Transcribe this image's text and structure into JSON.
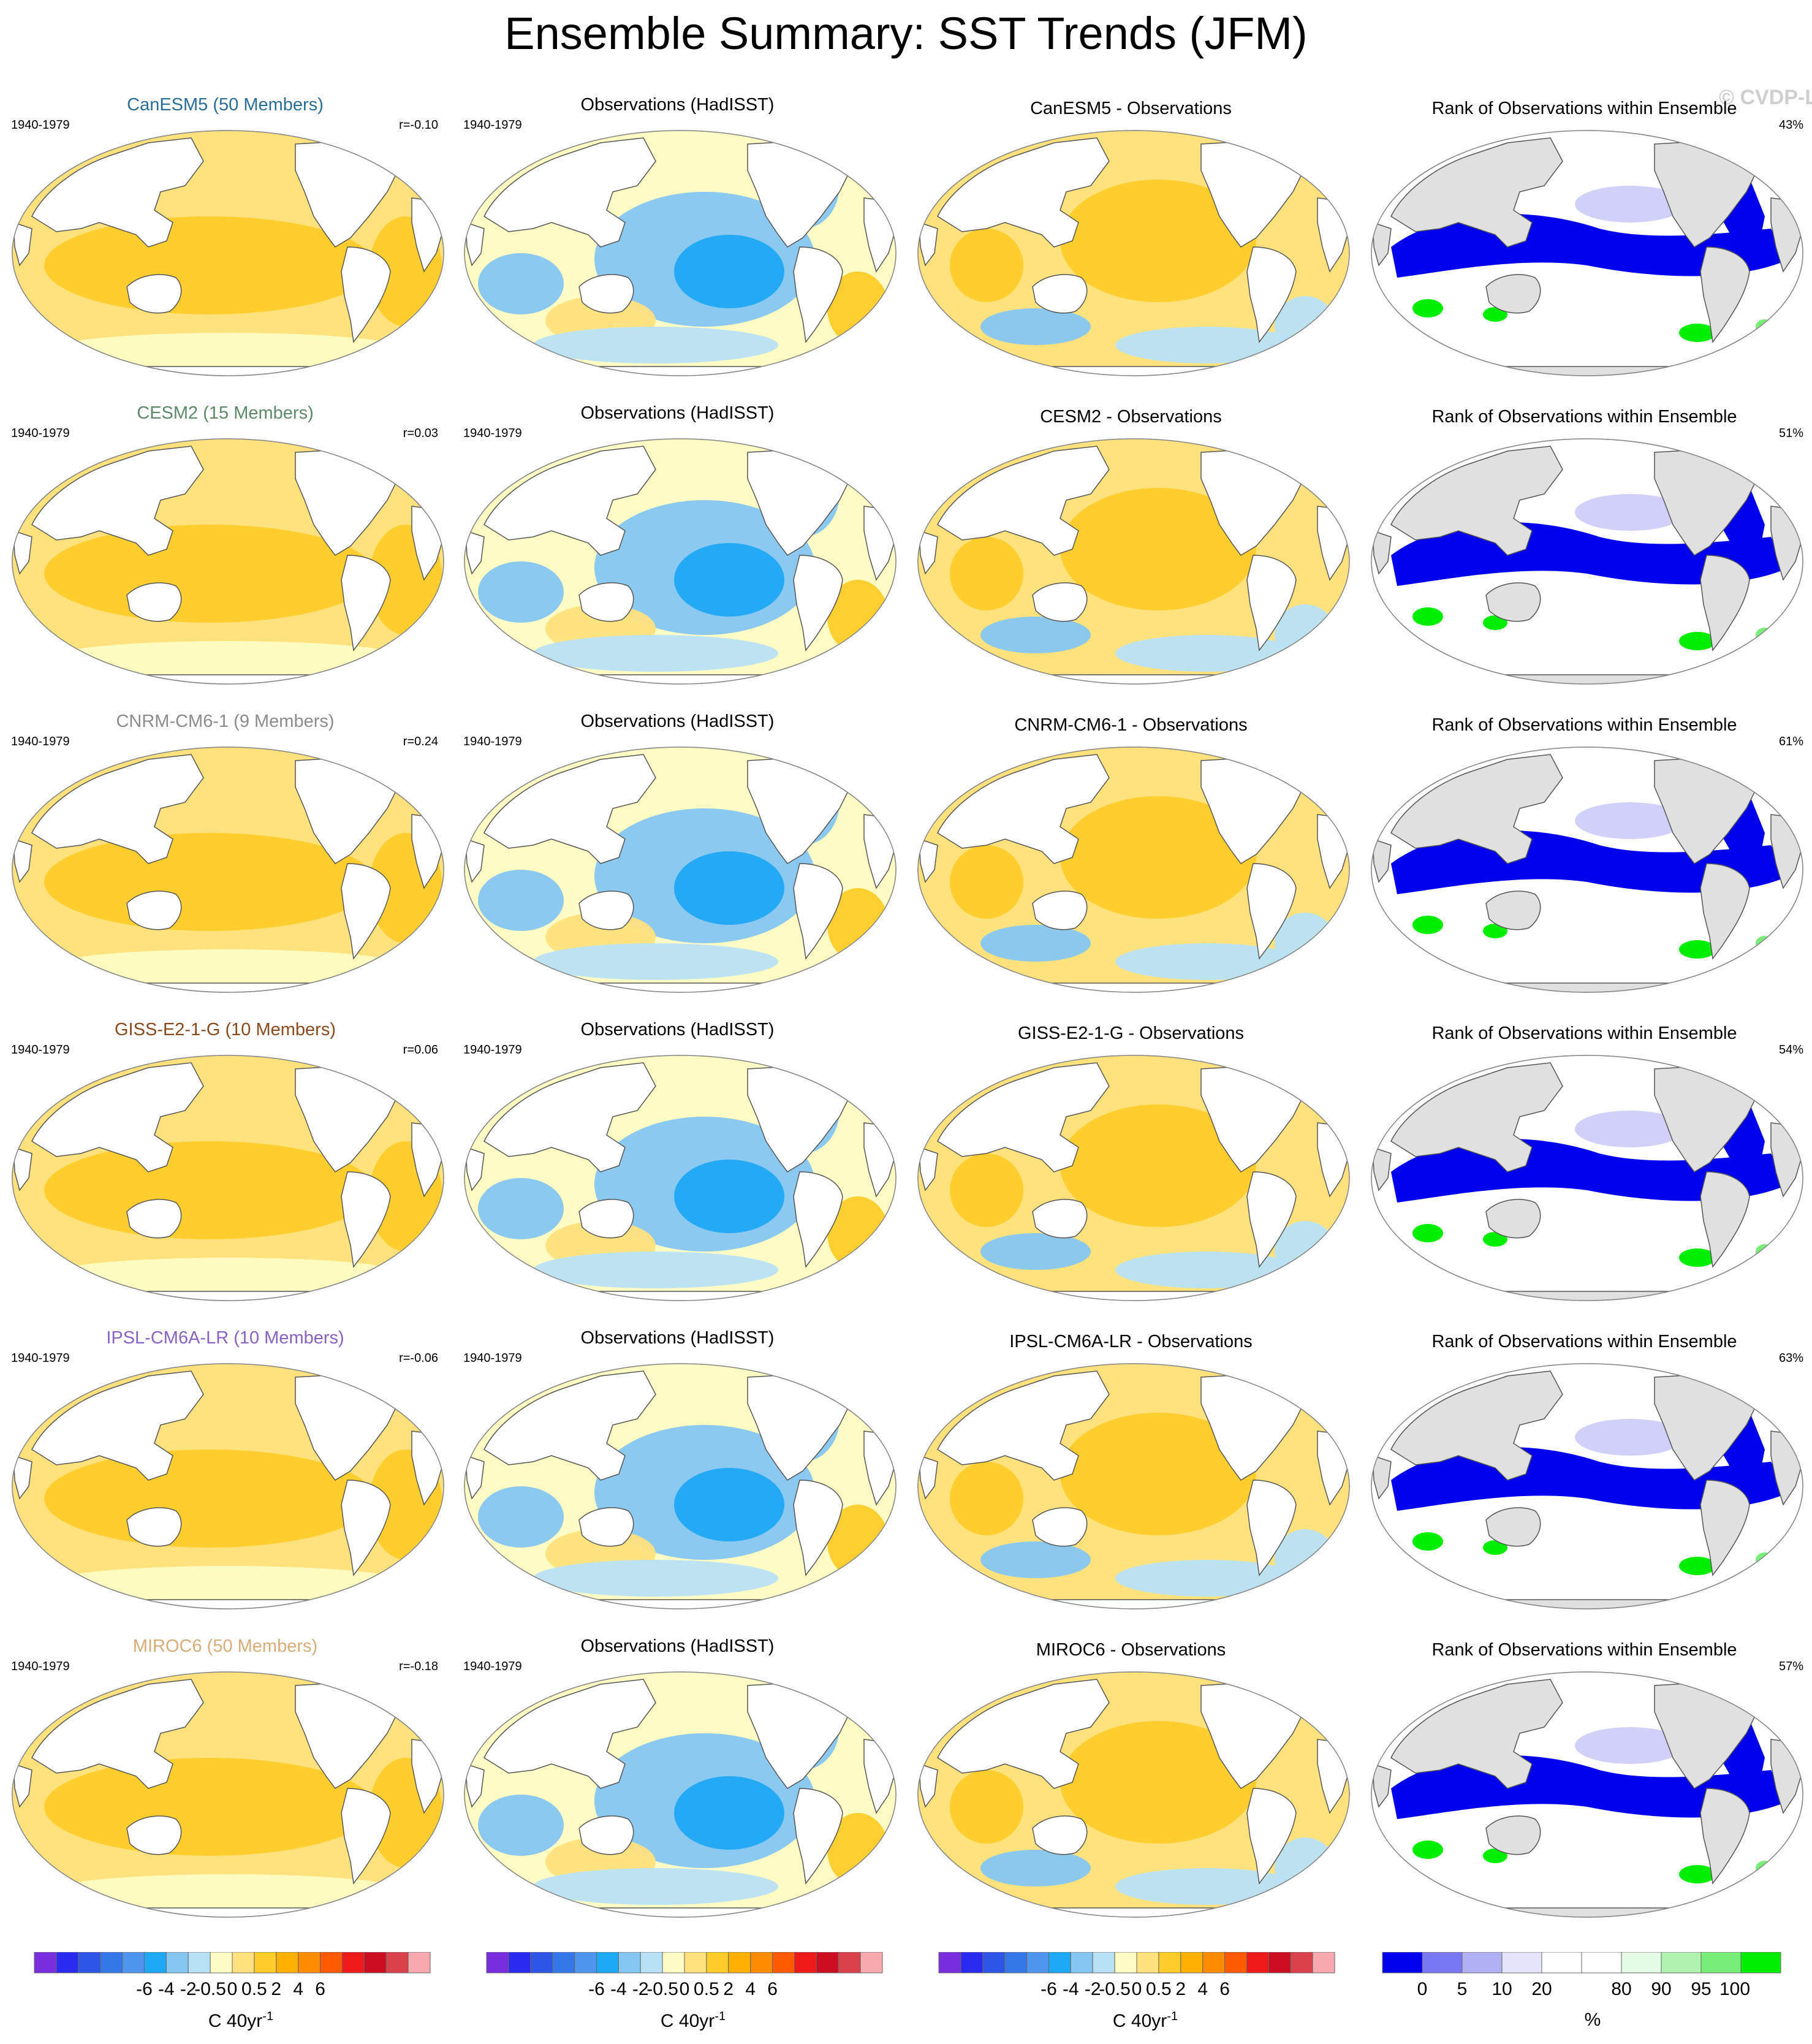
{
  "title": "Ensemble Summary: SST Trends (JFM)",
  "watermark": "© CVDP-LE",
  "period": "1940-1979",
  "colors": {
    "land_rank": "#e0e0e0",
    "coast": "#555555"
  },
  "chart_data": [
    {
      "type": "heatmap",
      "layout": "6 rows x 4 columns of global Robinson-projection SST trend maps",
      "columns": [
        "model ensemble mean trend",
        "Observations (HadISST) trend",
        "model minus observations",
        "Rank of Observations within Ensemble"
      ],
      "rows": [
        {
          "model": "CanESM5",
          "model_title": "CanESM5 (50 Members)",
          "title_color": "#2a6e98",
          "r": "r=-0.10",
          "obs_title": "Observations (HadISST)",
          "diff_title": "CanESM5 - Observations",
          "rank_title": "Rank of Observations within Ensemble",
          "rank_pct": "43%"
        },
        {
          "model": "CESM2",
          "model_title": "CESM2 (15 Members)",
          "title_color": "#5d8a6a",
          "r": "r=0.03",
          "obs_title": "Observations (HadISST)",
          "diff_title": "CESM2 - Observations",
          "rank_title": "Rank of Observations within Ensemble",
          "rank_pct": "51%"
        },
        {
          "model": "CNRM-CM6-1",
          "model_title": "CNRM-CM6-1 (9 Members)",
          "title_color": "#8c8c8c",
          "r": "r=0.24",
          "obs_title": "Observations (HadISST)",
          "diff_title": "CNRM-CM6-1 - Observations",
          "rank_title": "Rank of Observations within Ensemble",
          "rank_pct": "61%"
        },
        {
          "model": "GISS-E2-1-G",
          "model_title": "GISS-E2-1-G (10 Members)",
          "title_color": "#8a4a1e",
          "r": "r=0.06",
          "obs_title": "Observations (HadISST)",
          "diff_title": "GISS-E2-1-G - Observations",
          "rank_title": "Rank of Observations within Ensemble",
          "rank_pct": "54%"
        },
        {
          "model": "IPSL-CM6A-LR",
          "model_title": "IPSL-CM6A-LR (10 Members)",
          "title_color": "#8a62c6",
          "r": "r=-0.06",
          "obs_title": "Observations (HadISST)",
          "diff_title": "IPSL-CM6A-LR - Observations",
          "rank_title": "Rank of Observations within Ensemble",
          "rank_pct": "63%"
        },
        {
          "model": "MIROC6",
          "model_title": "MIROC6 (50 Members)",
          "title_color": "#d9ad78",
          "r": "r=-0.18",
          "obs_title": "Observations (HadISST)",
          "diff_title": "MIROC6 - Observations",
          "rank_title": "Rank of Observations within Ensemble",
          "rank_pct": "57%"
        }
      ],
      "trend_colorbar": {
        "unit_label": "C 40yr",
        "unit_sup": "-1",
        "tick_labels": [
          "-6",
          "-4",
          "-2",
          "-0.5",
          "0",
          "0.5",
          "2",
          "4",
          "6"
        ],
        "colors": [
          "#7a2ddd",
          "#2a2af0",
          "#2f55e6",
          "#3477e8",
          "#4f94ee",
          "#1fa9f4",
          "#86c6f2",
          "#b9e1f6",
          "#fefcc4",
          "#ffe27d",
          "#ffcc2a",
          "#ffb000",
          "#ff8c00",
          "#ff5a00",
          "#ee1a1a",
          "#cc0e22",
          "#d9424a",
          "#f7a9ad"
        ]
      },
      "rank_colorbar": {
        "unit_label": "%",
        "tick_labels": [
          "0",
          "5",
          "10",
          "20",
          "80",
          "90",
          "95",
          "100"
        ],
        "colors": [
          "#0000ee",
          "#7878f2",
          "#b0b0f5",
          "#e4e4fb",
          "#ffffff",
          "#ffffff",
          "#e4fbe4",
          "#b0f2b0",
          "#78ee78",
          "#00ee00"
        ]
      }
    }
  ]
}
